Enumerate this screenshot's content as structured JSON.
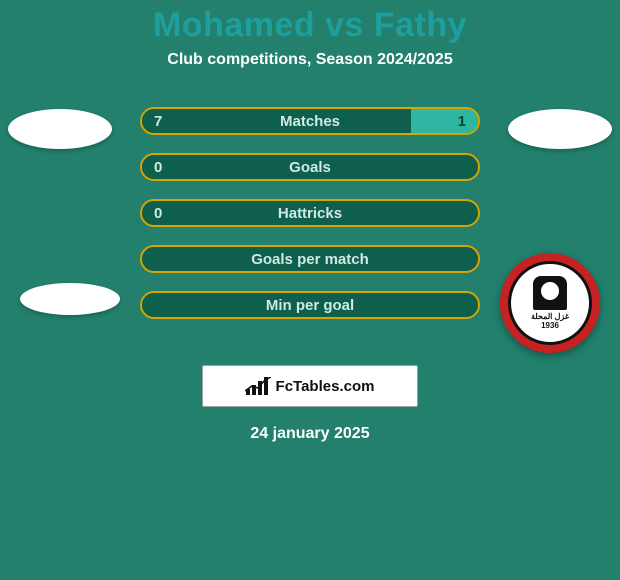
{
  "header": {
    "title": "Mohamed vs Fathy",
    "title_color": "#1f9e9e",
    "title_fontsize": 34,
    "subtitle": "Club competitions, Season 2024/2025",
    "subtitle_color": "#ffffff",
    "subtitle_fontsize": 16
  },
  "background_color": "#22806d",
  "crest_row_top": 0,
  "bars": {
    "height": 28,
    "radius": 14,
    "gap": 18,
    "label_fontsize": 15,
    "label_color": "#cfe9e3",
    "left_fill": "#0f5f4d",
    "right_fill": "#2fb6a3",
    "border_color": "#d7a400",
    "border_width": 2,
    "value_color_left": "#cfe9e3",
    "value_color_right": "#0a3f34",
    "value_fontsize": 15,
    "rows": [
      {
        "label": "Matches",
        "left": "7",
        "right": "1",
        "left_pct": 80,
        "right_pct": 20
      },
      {
        "label": "Goals",
        "left": "0",
        "right": "",
        "left_pct": 100,
        "right_pct": 0
      },
      {
        "label": "Hattricks",
        "left": "0",
        "right": "",
        "left_pct": 100,
        "right_pct": 0
      },
      {
        "label": "Goals per match",
        "left": "",
        "right": "",
        "left_pct": 100,
        "right_pct": 0
      },
      {
        "label": "Min per goal",
        "left": "",
        "right": "",
        "left_pct": 100,
        "right_pct": 0
      }
    ]
  },
  "club_badge": {
    "outer_color": "#c62222",
    "text": "غزل المحلة",
    "year": "1936"
  },
  "brand": {
    "text": "FcTables.com",
    "box_bg": "#ffffff",
    "box_border": "#9aa39d"
  },
  "date": {
    "text": "24 january 2025",
    "color": "#ffffff",
    "fontsize": 16
  }
}
